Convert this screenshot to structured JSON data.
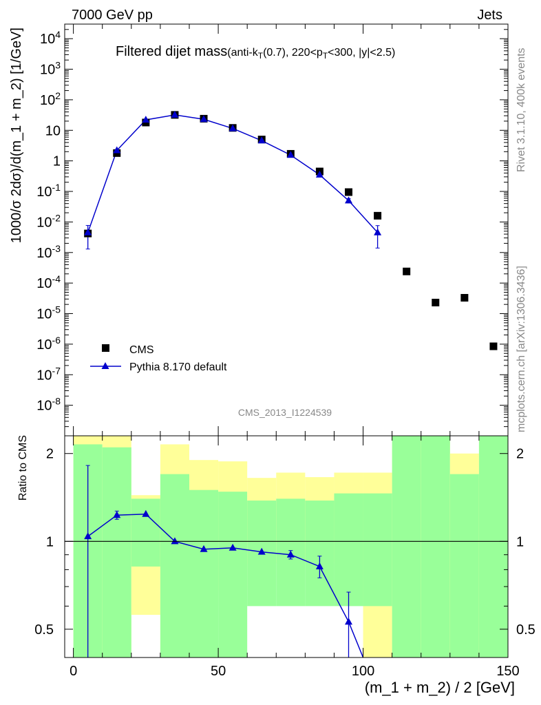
{
  "header": {
    "left": "7000 GeV pp",
    "right": "Jets"
  },
  "side_labels": {
    "rivet": "Rivet 3.1.10,  400k events",
    "mcplots": "mcplots.cern.ch [arXiv:1306.3436]"
  },
  "watermark": "CMS_2013_I1224539",
  "chart_data": [
    {
      "type": "scatter",
      "panel": "main",
      "title": "Filtered dijet mass",
      "title_suffix": "(anti-k_T(0.7), 220<p_T<300, |y|<2.5)",
      "ylabel": "1000/σ 2dσ)/d(m_1 + m_2) [1/GeV]",
      "y_scale": "log",
      "ylim": [
        1e-09,
        30000.0
      ],
      "xlim": [
        -3,
        150
      ],
      "y_tick_labels": [
        "10^{-8}",
        "10^{-7}",
        "10^{-6}",
        "10^{-5}",
        "10^{-4}",
        "10^{-3}",
        "10^{-2}",
        "10^{-1}",
        "1",
        "10",
        "10^{2}",
        "10^{3}",
        "10^{4}"
      ],
      "legend_position": "bottom-left",
      "series": [
        {
          "name": "CMS",
          "color": "#000000",
          "marker": "square",
          "x": [
            5,
            15,
            25,
            35,
            45,
            55,
            65,
            75,
            85,
            95,
            105,
            115,
            125,
            135,
            145
          ],
          "y": [
            0.0042,
            1.8,
            18,
            32,
            24,
            12,
            5,
            1.7,
            0.45,
            0.095,
            0.016,
            0.00024,
            2.3e-05,
            3.3e-05,
            8.5e-07
          ]
        },
        {
          "name": "Pythia 8.170 default",
          "color": "#0000cc",
          "marker": "triangle",
          "x": [
            5,
            15,
            25,
            35,
            45,
            55,
            65,
            75,
            85,
            95,
            105
          ],
          "y": [
            0.0045,
            2.2,
            22,
            32,
            23,
            11.5,
            4.6,
            1.55,
            0.35,
            0.05,
            0.0045
          ],
          "err_low": [
            0.0032,
            0,
            0,
            0,
            0,
            0,
            0,
            0,
            0.04,
            0.008,
            0.0031
          ],
          "err_high": [
            0.0032,
            0,
            0,
            0,
            0,
            0,
            0,
            0,
            0.04,
            0.008,
            0.0031
          ]
        }
      ]
    },
    {
      "type": "line",
      "panel": "ratio",
      "ylabel": "Ratio to CMS",
      "y_scale": "log",
      "ylim": [
        0.4,
        2.3
      ],
      "xlim": [
        -3,
        150
      ],
      "xlabel": "(m_1 + m_2) / 2 [GeV]",
      "x_ticks": [
        0,
        50,
        100,
        150
      ],
      "y_ticks": [
        {
          "value": 0.5,
          "label": "0.5"
        },
        {
          "value": 1,
          "label": "1"
        },
        {
          "value": 2,
          "label": "2"
        }
      ],
      "bands": {
        "bins": [
          [
            0,
            10
          ],
          [
            10,
            20
          ],
          [
            20,
            30
          ],
          [
            30,
            40
          ],
          [
            40,
            50
          ],
          [
            50,
            60
          ],
          [
            60,
            70
          ],
          [
            70,
            80
          ],
          [
            80,
            90
          ],
          [
            90,
            100
          ],
          [
            100,
            110
          ],
          [
            110,
            120
          ],
          [
            120,
            130
          ],
          [
            130,
            140
          ],
          [
            140,
            150
          ]
        ],
        "yellow_color": "#ffff99",
        "green_color": "#99ff99",
        "yellow": [
          [
            0.4,
            2.3
          ],
          [
            0.4,
            2.3
          ],
          [
            0.56,
            1.44
          ],
          [
            0.4,
            2.15
          ],
          [
            0.6,
            1.9
          ],
          [
            0.68,
            1.88
          ],
          [
            0.84,
            1.65
          ],
          [
            0.85,
            1.72
          ],
          [
            0.85,
            1.66
          ],
          [
            0.84,
            1.72
          ],
          [
            0.4,
            1.72
          ],
          [
            0.38,
            2.3
          ],
          [
            0.38,
            2.3
          ],
          [
            0.38,
            2.0
          ],
          [
            0.4,
            2.3
          ]
        ],
        "green": [
          [
            0.4,
            2.15
          ],
          [
            0.4,
            2.1
          ],
          [
            0.82,
            1.4
          ],
          [
            0.4,
            1.7
          ],
          [
            0.4,
            1.5
          ],
          [
            0.4,
            1.48
          ],
          [
            0.6,
            1.38
          ],
          [
            0.6,
            1.4
          ],
          [
            0.6,
            1.38
          ],
          [
            0.6,
            1.46
          ],
          [
            0.6,
            1.46
          ],
          [
            0.4,
            2.3
          ],
          [
            0.4,
            2.3
          ],
          [
            0.4,
            1.7
          ],
          [
            0.4,
            2.3
          ]
        ]
      },
      "series": [
        {
          "name": "Pythia 8.170 default",
          "color": "#0000cc",
          "x": [
            5,
            15,
            25,
            35,
            45,
            55,
            65,
            75,
            85,
            95,
            100
          ],
          "y": [
            1.04,
            1.23,
            1.24,
            1.0,
            0.94,
            0.95,
            0.92,
            0.9,
            0.82,
            0.53,
            0.4
          ],
          "err_low": [
            0.67,
            0.04,
            0,
            0,
            0,
            0,
            0,
            0.03,
            0.07,
            0.14,
            0
          ],
          "err_high": [
            0.78,
            0.04,
            0,
            0,
            0,
            0,
            0,
            0.03,
            0.07,
            0.14,
            0
          ]
        }
      ]
    }
  ]
}
